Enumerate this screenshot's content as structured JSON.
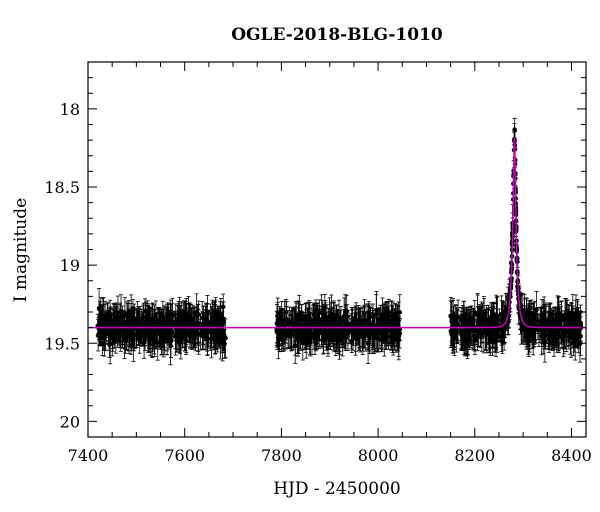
{
  "chart_data": {
    "type": "scatter",
    "title": "OGLE-2018-BLG-1010",
    "xlabel": "HJD - 2450000",
    "ylabel": "I magnitude",
    "xlim": [
      7400,
      8430
    ],
    "ylim": [
      20.1,
      17.7
    ],
    "y_inverted": true,
    "x_ticks": [
      7400,
      7600,
      7800,
      8000,
      8200,
      8400
    ],
    "x_tick_labels": [
      "7400",
      "7600",
      "7800",
      "8000",
      "8200",
      "8400"
    ],
    "y_ticks": [
      18,
      18.5,
      19,
      19.5,
      20
    ],
    "y_tick_labels": [
      "18",
      "18.5",
      "19",
      "19.5",
      "20"
    ],
    "grid": false,
    "observation_seasons": [
      {
        "start": 7420,
        "end": 7685,
        "mean_mag": 19.42,
        "scatter_mag": 0.11,
        "error_bar_mag": 0.1
      },
      {
        "start": 7790,
        "end": 8045,
        "mean_mag": 19.4,
        "scatter_mag": 0.11,
        "error_bar_mag": 0.1
      },
      {
        "start": 8150,
        "end": 8420,
        "mean_mag": 19.4,
        "scatter_mag": 0.11,
        "error_bar_mag": 0.1
      }
    ],
    "event": {
      "t0": 8282,
      "peak_mag": 18.17,
      "baseline_mag": 19.4,
      "tE": 8,
      "u0": 0.23
    },
    "series": [
      {
        "role": "data",
        "color": "#000000"
      },
      {
        "role": "model",
        "color": "#c800c8"
      }
    ]
  }
}
